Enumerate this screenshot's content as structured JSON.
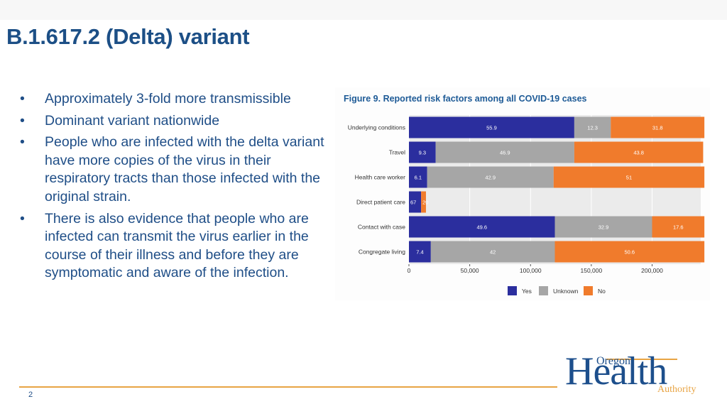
{
  "slide": {
    "title": "B.1.617.2 (Delta) variant",
    "page_number": "2",
    "bullets": [
      "Approximately 3-fold more transmissible",
      "Dominant variant nationwide",
      "People who are infected with the delta variant have more copies of the virus in their respiratory tracts than those infected with the original strain.",
      "There is also evidence that people who are infected can transmit the virus earlier in the course of their illness and before they are symptomatic and aware of the infection."
    ],
    "bullet_symbol": "•"
  },
  "logo": {
    "word1": "Oregon",
    "word2": "Health",
    "word3": "Authority"
  },
  "chart_data": {
    "type": "bar",
    "orientation": "horizontal",
    "stacked": true,
    "title": "Figure 9. Reported risk factors among all COVID-19 cases",
    "categories": [
      "Underlying conditions",
      "Travel",
      "Health care worker",
      "Direct patient care",
      "Contact with case",
      "Congregate living"
    ],
    "series": [
      {
        "name": "Yes",
        "color": "#2b2e9e",
        "values": [
          136000,
          22000,
          15000,
          10000,
          120000,
          18000
        ],
        "labels": [
          "55.9",
          "9.3",
          "6.1",
          "67",
          "49.6",
          "7.4"
        ]
      },
      {
        "name": "Unknown",
        "color": "#a6a6a6",
        "values": [
          30000,
          114000,
          104000,
          0,
          80000,
          102000
        ],
        "labels": [
          "12.3",
          "46.9",
          "42.9",
          "",
          "32.9",
          "42"
        ]
      },
      {
        "name": "No",
        "color": "#f07b2c",
        "values": [
          77000,
          106000,
          124000,
          4000,
          43000,
          123000
        ],
        "labels": [
          "31.8",
          "43.8",
          "51",
          "20",
          "17.6",
          "50.6"
        ]
      }
    ],
    "xlim": [
      0,
      240000
    ],
    "xticks": [
      0,
      50000,
      100000,
      150000,
      200000
    ],
    "xtick_labels": [
      "0",
      "50,000",
      "100,000",
      "150,000",
      "200,000"
    ],
    "xlabel": "",
    "ylabel": "",
    "legend": [
      "Yes",
      "Unknown",
      "No"
    ],
    "legend_position": "bottom",
    "grid": true
  }
}
